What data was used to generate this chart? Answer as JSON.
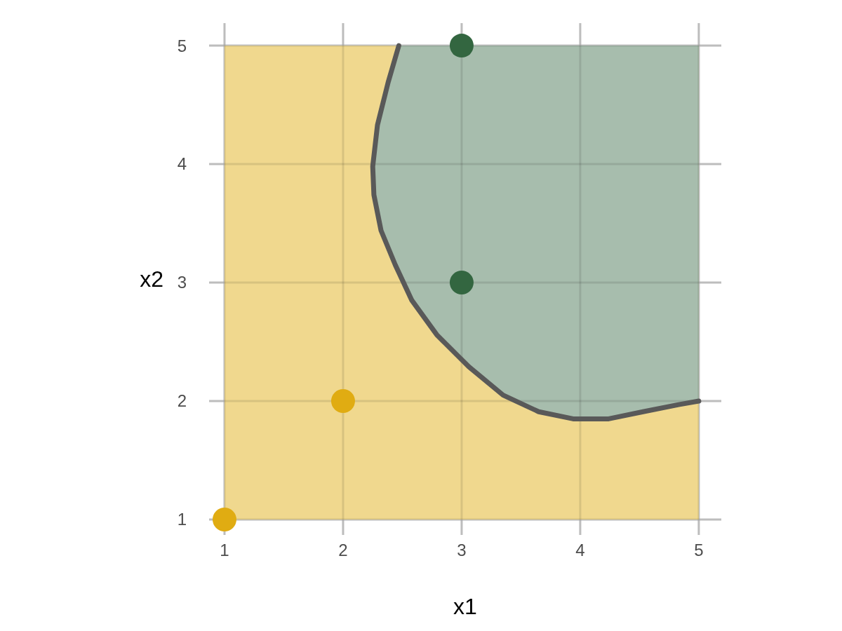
{
  "chart_data": {
    "type": "scatter",
    "xlabel": "x1",
    "ylabel": "x2",
    "xlim": [
      0.87,
      5.19
    ],
    "ylim": [
      0.87,
      5.19
    ],
    "xticks": [
      1,
      2,
      3,
      4,
      5
    ],
    "yticks": [
      1,
      2,
      3,
      4,
      5
    ],
    "grid": true,
    "bands": [
      {
        "axis": "x",
        "from": 1,
        "to": 5,
        "color": "#f0d88e"
      }
    ],
    "series": [
      {
        "type": "line",
        "color": "#595959",
        "x": [
          2.47,
          2.38,
          2.29,
          2.25,
          2.26,
          2.32,
          2.44,
          2.58,
          2.79,
          3.06,
          3.35,
          3.65,
          3.94,
          4.24,
          4.53,
          4.83,
          5
        ],
        "values": [
          5,
          4.69,
          4.33,
          3.98,
          3.74,
          3.44,
          3.15,
          2.85,
          2.56,
          2.29,
          2.05,
          1.91,
          1.85,
          1.85,
          1.91,
          1.97,
          2.0
        ],
        "lower": [
          5,
          4.69,
          4.33,
          3.98,
          3.74,
          3.44,
          3.15,
          2.85,
          2.56,
          2.29,
          2.05,
          1.91,
          1.85,
          1.85,
          1.91,
          1.97,
          2.0
        ],
        "upper": [
          5,
          5,
          5,
          5,
          5,
          5,
          5,
          5,
          5,
          5,
          5,
          5,
          5,
          5,
          5,
          5,
          5
        ]
      },
      {
        "color": "#e0ac12",
        "marker": "circle",
        "x": [
          1,
          2
        ],
        "values": [
          1,
          2
        ]
      },
      {
        "color": "#336640",
        "marker": "circle",
        "x": [
          3,
          3
        ],
        "values": [
          3,
          5
        ]
      }
    ]
  }
}
